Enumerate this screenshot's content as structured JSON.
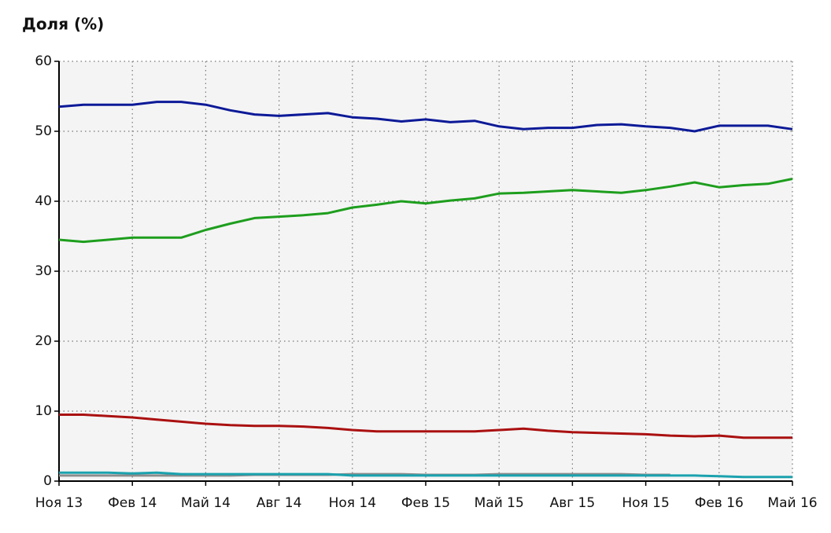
{
  "chart_data": {
    "type": "line",
    "title": "Доля (%)",
    "categories": [
      "Ноя 13",
      null,
      null,
      "Фев 14",
      null,
      null,
      "Май 14",
      null,
      null,
      "Авг 14",
      null,
      null,
      "Ноя 14",
      null,
      null,
      "Фев 15",
      null,
      null,
      "Май 15",
      null,
      null,
      "Авг 15",
      null,
      null,
      "Ноя 15",
      null,
      null,
      "Фев 16",
      null,
      null,
      "Май 16"
    ],
    "ylim": [
      0,
      60
    ],
    "yticks": [
      0,
      10,
      20,
      30,
      40,
      50,
      60
    ],
    "grid": true,
    "series": [
      {
        "color": "#aa1010",
        "values": [
          9.5,
          9.5,
          9.3,
          9.1,
          8.8,
          8.5,
          8.2,
          8.0,
          7.9,
          7.9,
          7.8,
          7.6,
          7.3,
          7.1,
          7.1,
          7.1,
          7.1,
          7.1,
          7.3,
          7.5,
          7.2,
          7.0,
          6.9,
          6.8,
          6.7,
          6.5,
          6.4,
          6.5,
          6.2,
          6.2,
          6.2
        ]
      },
      {
        "color": "#1d9e1d",
        "values": [
          34.5,
          34.2,
          34.5,
          34.8,
          34.8,
          34.8,
          35.9,
          36.8,
          37.6,
          37.8,
          38.0,
          38.3,
          39.1,
          39.5,
          40.0,
          39.7,
          40.1,
          40.4,
          41.1,
          41.2,
          41.4,
          41.6,
          41.4,
          41.2,
          41.6,
          42.1,
          42.7,
          42.0,
          42.3,
          42.5,
          43.2
        ]
      },
      {
        "color": "#0c1a98",
        "values": [
          53.5,
          53.8,
          53.8,
          53.8,
          54.2,
          54.2,
          53.8,
          53.0,
          52.4,
          52.2,
          52.4,
          52.6,
          52.0,
          51.8,
          51.4,
          51.7,
          51.3,
          51.5,
          50.7,
          50.3,
          50.5,
          50.5,
          50.9,
          51.0,
          50.7,
          50.5,
          50.0,
          50.8,
          50.8,
          50.8,
          50.3
        ]
      },
      {
        "color": "#8c8c8c",
        "values": [
          0.8,
          0.8,
          0.8,
          0.8,
          0.8,
          0.8,
          0.8,
          0.8,
          0.9,
          0.9,
          0.9,
          0.9,
          1.0,
          1.0,
          1.0,
          0.9,
          0.9,
          0.9,
          1.0,
          1.0,
          1.0,
          1.0,
          1.0,
          1.0,
          0.9,
          0.9,
          null,
          null,
          null,
          null,
          null
        ]
      },
      {
        "color": "#1aa2ae",
        "values": [
          1.2,
          1.2,
          1.2,
          1.1,
          1.2,
          1.0,
          1.0,
          1.0,
          1.0,
          1.0,
          1.0,
          1.0,
          0.8,
          0.8,
          0.8,
          0.8,
          0.8,
          0.8,
          0.8,
          0.8,
          0.8,
          0.8,
          0.8,
          0.8,
          0.8,
          0.8,
          0.8,
          0.7,
          0.6,
          0.6,
          0.6
        ]
      }
    ]
  }
}
